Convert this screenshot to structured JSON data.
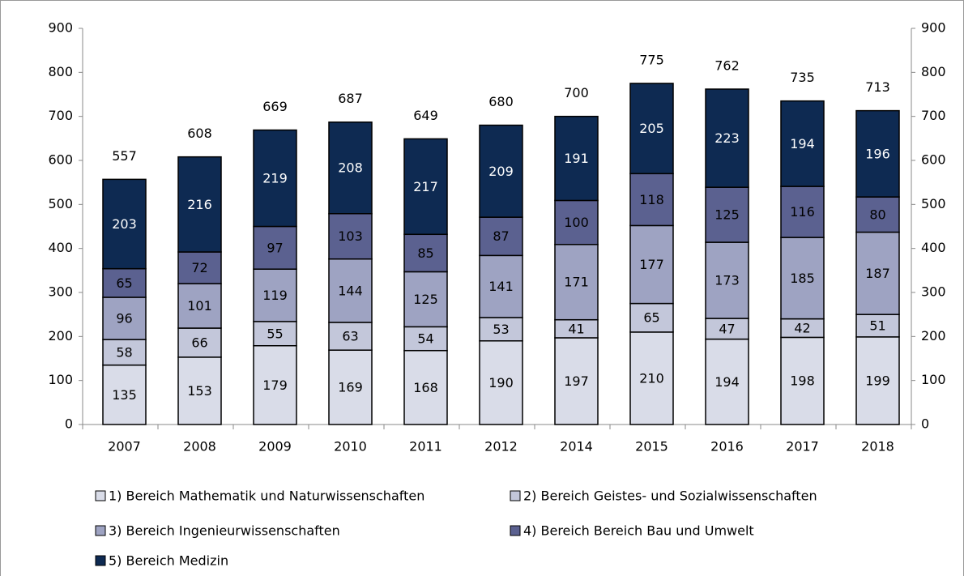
{
  "chart_data": {
    "type": "stacked_bar",
    "categories": [
      "2007",
      "2008",
      "2009",
      "2010",
      "2011",
      "2012",
      "2014",
      "2015",
      "2016",
      "2017",
      "2018"
    ],
    "series": [
      {
        "name": "1) Bereich Mathematik und Naturwissenschaften",
        "color": "#d9dce8",
        "values": [
          135,
          153,
          179,
          169,
          168,
          190,
          197,
          210,
          194,
          198,
          199
        ]
      },
      {
        "name": "2) Bereich Geistes- und Sozialwissenschaften",
        "color": "#c3c7da",
        "values": [
          58,
          66,
          55,
          63,
          54,
          53,
          41,
          65,
          47,
          42,
          51
        ]
      },
      {
        "name": "3) Bereich Ingenieurwissenschaften",
        "color": "#9ea3c2",
        "values": [
          96,
          101,
          119,
          144,
          125,
          141,
          171,
          177,
          173,
          185,
          187
        ]
      },
      {
        "name": "4) Bereich Bereich Bau und Umwelt",
        "color": "#5b6190",
        "values": [
          65,
          72,
          97,
          103,
          85,
          87,
          100,
          118,
          125,
          116,
          80
        ]
      },
      {
        "name": "5) Bereich Medizin",
        "color": "#0e2a52",
        "values": [
          203,
          216,
          219,
          208,
          217,
          209,
          191,
          205,
          223,
          194,
          196
        ]
      }
    ],
    "totals": [
      557,
      608,
      669,
      687,
      649,
      680,
      700,
      775,
      762,
      735,
      713
    ],
    "ylim": [
      0,
      900
    ],
    "yticks": [
      0,
      100,
      200,
      300,
      400,
      500,
      600,
      700,
      800,
      900
    ],
    "y2lim": [
      0,
      900
    ],
    "y2ticks": [
      0,
      100,
      200,
      300,
      400,
      500,
      600,
      700,
      800,
      900
    ],
    "legend": "bottom"
  }
}
